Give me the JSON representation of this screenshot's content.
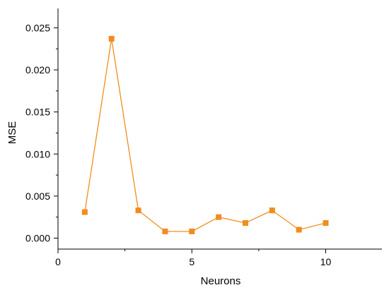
{
  "chart_data": {
    "type": "line",
    "title": "",
    "xlabel": "Neurons",
    "ylabel": "MSE",
    "xlim": [
      0,
      12.1
    ],
    "ylim": [
      -0.0013,
      0.0273
    ],
    "x_ticks": [
      0,
      5,
      10
    ],
    "x_tick_labels": [
      "0",
      "5",
      "10"
    ],
    "y_ticks": [
      0.0,
      0.005,
      0.01,
      0.015,
      0.02,
      0.025
    ],
    "y_tick_labels": [
      "0.000",
      "0.005",
      "0.010",
      "0.015",
      "0.020",
      "0.025"
    ],
    "grid": false,
    "legend": "none",
    "series": [
      {
        "x": [
          1,
          2,
          3,
          4,
          5,
          6,
          7,
          8,
          9,
          10
        ],
        "values": [
          0.0031,
          0.0237,
          0.0033,
          0.0008,
          0.0008,
          0.0025,
          0.0018,
          0.0033,
          0.001,
          0.0018
        ],
        "color": "#f28c1e",
        "marker": "square"
      }
    ]
  }
}
